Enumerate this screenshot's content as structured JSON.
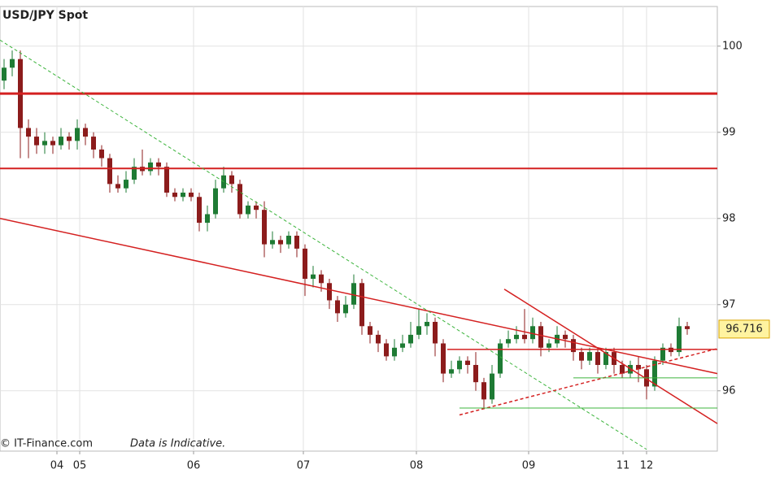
{
  "chart_data": {
    "type": "candlestick",
    "title": "USD/JPY Spot",
    "source": "© IT-Finance.com",
    "note": "Data is Indicative.",
    "x": [
      0,
      1,
      2,
      3,
      4,
      5,
      6,
      7,
      8,
      9,
      10,
      11,
      12,
      13,
      14,
      15,
      16,
      17,
      18,
      19,
      20,
      21,
      22,
      23,
      24,
      25,
      26,
      27,
      28,
      29,
      30,
      31,
      32,
      33,
      34,
      35,
      36,
      37,
      38,
      39,
      40,
      41,
      42,
      43,
      44,
      45,
      46,
      47,
      48,
      49,
      50,
      51,
      52,
      53,
      54,
      55,
      56,
      57,
      58,
      59,
      60,
      61,
      62,
      63,
      64,
      65,
      66,
      67,
      68,
      69,
      70,
      71,
      72,
      73,
      74,
      75,
      76,
      77,
      78,
      79,
      80,
      81,
      82,
      83,
      84
    ],
    "open": [
      99.6,
      99.75,
      99.85,
      99.05,
      98.95,
      98.85,
      98.9,
      98.85,
      98.95,
      98.9,
      99.05,
      98.95,
      98.8,
      98.7,
      98.4,
      98.35,
      98.45,
      98.6,
      98.55,
      98.65,
      98.6,
      98.3,
      98.25,
      98.3,
      98.25,
      97.95,
      98.05,
      98.35,
      98.5,
      98.4,
      98.05,
      98.15,
      98.1,
      97.7,
      97.75,
      97.7,
      97.8,
      97.65,
      97.3,
      97.35,
      97.25,
      97.05,
      96.9,
      97.0,
      97.25,
      96.75,
      96.65,
      96.55,
      96.4,
      96.5,
      96.55,
      96.65,
      96.75,
      96.8,
      96.55,
      96.2,
      96.25,
      96.35,
      96.3,
      96.1,
      95.9,
      96.2,
      96.55,
      96.6,
      96.65,
      96.6,
      96.75,
      96.5,
      96.55,
      96.65,
      96.6,
      96.45,
      96.35,
      96.45,
      96.3,
      96.45,
      96.3,
      96.2,
      96.3,
      96.25,
      96.05,
      96.35,
      96.5,
      96.45,
      96.75
    ],
    "high": [
      99.85,
      99.95,
      99.95,
      99.15,
      99.05,
      99.0,
      98.95,
      99.05,
      99.0,
      99.15,
      99.1,
      99.0,
      98.85,
      98.75,
      98.5,
      98.55,
      98.7,
      98.8,
      98.7,
      98.7,
      98.65,
      98.35,
      98.35,
      98.35,
      98.3,
      98.15,
      98.45,
      98.6,
      98.55,
      98.45,
      98.2,
      98.2,
      98.2,
      97.85,
      97.8,
      97.85,
      97.85,
      97.7,
      97.45,
      97.4,
      97.3,
      97.1,
      97.1,
      97.35,
      97.3,
      96.8,
      96.7,
      96.6,
      96.6,
      96.65,
      96.8,
      96.95,
      96.9,
      96.85,
      96.6,
      96.35,
      96.4,
      96.4,
      96.45,
      96.15,
      96.3,
      96.6,
      96.7,
      96.75,
      96.95,
      96.85,
      96.8,
      96.6,
      96.75,
      96.7,
      96.65,
      96.5,
      96.5,
      96.5,
      96.5,
      96.5,
      96.35,
      96.35,
      96.4,
      96.3,
      96.4,
      96.55,
      96.55,
      96.85,
      96.8
    ],
    "low": [
      99.5,
      99.65,
      98.7,
      98.7,
      98.75,
      98.75,
      98.75,
      98.8,
      98.8,
      98.8,
      98.85,
      98.7,
      98.6,
      98.3,
      98.3,
      98.3,
      98.4,
      98.5,
      98.5,
      98.5,
      98.25,
      98.2,
      98.2,
      98.2,
      97.85,
      97.85,
      98.0,
      98.3,
      98.3,
      98.0,
      98.0,
      98.0,
      97.55,
      97.65,
      97.6,
      97.65,
      97.55,
      97.1,
      97.2,
      97.15,
      96.95,
      96.8,
      96.85,
      96.95,
      96.65,
      96.55,
      96.45,
      96.35,
      96.35,
      96.45,
      96.5,
      96.6,
      96.65,
      96.4,
      96.1,
      96.15,
      96.2,
      96.2,
      96.0,
      95.8,
      95.85,
      96.15,
      96.5,
      96.55,
      96.55,
      96.55,
      96.4,
      96.45,
      96.5,
      96.5,
      96.35,
      96.25,
      96.3,
      96.2,
      96.25,
      96.2,
      96.15,
      96.15,
      96.1,
      95.9,
      96.0,
      96.3,
      96.4,
      96.4,
      96.65
    ],
    "close": [
      99.75,
      99.85,
      99.05,
      98.95,
      98.85,
      98.9,
      98.85,
      98.95,
      98.9,
      99.05,
      98.95,
      98.8,
      98.7,
      98.4,
      98.35,
      98.45,
      98.6,
      98.55,
      98.65,
      98.6,
      98.3,
      98.25,
      98.3,
      98.25,
      97.95,
      98.05,
      98.35,
      98.5,
      98.4,
      98.05,
      98.15,
      98.1,
      97.7,
      97.75,
      97.7,
      97.8,
      97.65,
      97.3,
      97.35,
      97.25,
      97.05,
      96.9,
      97.0,
      97.25,
      96.75,
      96.65,
      96.55,
      96.4,
      96.5,
      96.55,
      96.65,
      96.75,
      96.8,
      96.55,
      96.2,
      96.25,
      96.35,
      96.3,
      96.1,
      95.9,
      96.2,
      96.55,
      96.6,
      96.65,
      96.6,
      96.75,
      96.5,
      96.55,
      96.65,
      96.6,
      96.45,
      96.35,
      96.45,
      96.3,
      96.45,
      96.3,
      96.2,
      96.3,
      96.25,
      96.05,
      96.35,
      96.5,
      96.45,
      96.75,
      96.716
    ],
    "up_color": "#1e7b34",
    "down_color": "#8c1c1c",
    "last_price": 96.716,
    "xlim": [
      -0.5,
      87.7
    ],
    "xticks": [
      {
        "value": 6.5,
        "label": "04"
      },
      {
        "value": 9.3,
        "label": "05"
      },
      {
        "value": 23.3,
        "label": "06"
      },
      {
        "value": 36.8,
        "label": "07"
      },
      {
        "value": 50.7,
        "label": "08"
      },
      {
        "value": 64.5,
        "label": "09"
      },
      {
        "value": 76.1,
        "label": "11"
      },
      {
        "value": 79.0,
        "label": "12"
      }
    ],
    "ylim": [
      95.3,
      100.46
    ],
    "yticks": [
      96,
      97,
      98,
      99,
      100
    ],
    "grid": true,
    "lines": [
      {
        "x1": -0.5,
        "y1": 99.45,
        "x2": 87.7,
        "y2": 99.45,
        "color": "#d42020",
        "style": "solid",
        "width": 3
      },
      {
        "x1": -0.5,
        "y1": 98.58,
        "x2": 87.7,
        "y2": 98.58,
        "color": "#d42020",
        "style": "solid",
        "width": 2
      },
      {
        "x1": -0.5,
        "y1": 98.0,
        "x2": 87.7,
        "y2": 96.2,
        "color": "#d42020",
        "style": "solid",
        "width": 1.5
      },
      {
        "x1": -0.5,
        "y1": 100.07,
        "x2": 79.0,
        "y2": 95.32,
        "color": "#3cb43c",
        "style": "dashed",
        "width": 1
      },
      {
        "x1": 61.5,
        "y1": 97.18,
        "x2": 87.7,
        "y2": 95.62,
        "color": "#d42020",
        "style": "solid",
        "width": 1.5
      },
      {
        "x1": 54.5,
        "y1": 96.48,
        "x2": 87.7,
        "y2": 96.48,
        "color": "#d42020",
        "style": "solid",
        "width": 1.5
      },
      {
        "x1": 56.0,
        "y1": 95.72,
        "x2": 87.7,
        "y2": 96.49,
        "color": "#d42020",
        "style": "dashed",
        "width": 1.5
      },
      {
        "x1": 70.0,
        "y1": 96.15,
        "x2": 87.7,
        "y2": 96.15,
        "color": "#3cb43c",
        "style": "solid",
        "width": 1
      },
      {
        "x1": 56.0,
        "y1": 95.8,
        "x2": 87.7,
        "y2": 95.8,
        "color": "#3cb43c",
        "style": "solid",
        "width": 1
      }
    ]
  }
}
